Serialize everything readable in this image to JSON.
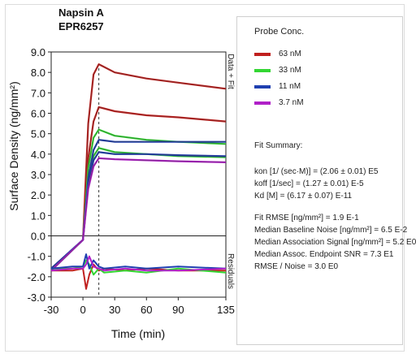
{
  "chart_data": {
    "type": "line",
    "title": "Napsin A",
    "subtitle": "EPR6257",
    "xlabel": "Time (min)",
    "ylabel": "Surface Density (ng/mm²)",
    "right_label_top": "Data + Fit",
    "right_label_bottom": "Residuals",
    "xlim": [
      -30,
      135
    ],
    "ylim": [
      -3.0,
      9.0
    ],
    "xticks": [
      -30,
      0,
      30,
      60,
      90,
      135
    ],
    "yticks": [
      9.0,
      8.0,
      7.0,
      6.0,
      5.0,
      4.0,
      3.0,
      2.0,
      1.0,
      0.0,
      -1.0,
      -2.0,
      -3.0
    ],
    "ytick_labels": [
      "9.0",
      "8.0",
      "7.0",
      "6.0",
      "5.0",
      "4.0",
      "3.0",
      "2.0",
      "1.0",
      "0.0",
      "-1.0",
      "-2.0",
      "-3.0"
    ],
    "xtick_labels": [
      "-30",
      "0",
      "30",
      "60",
      "90",
      "135"
    ],
    "dashed_marker_x": 15,
    "series": [
      {
        "name": "63 nM",
        "color": "#c0201e",
        "x": [
          -30,
          0,
          5,
          10,
          15,
          30,
          60,
          90,
          135
        ],
        "y": [
          -1.6,
          -0.2,
          5.5,
          7.9,
          8.4,
          8.0,
          7.7,
          7.5,
          7.2
        ]
      },
      {
        "name": "63 nM",
        "color": "#c0201e",
        "x": [
          -30,
          0,
          5,
          10,
          15,
          30,
          60,
          90,
          135
        ],
        "y": [
          -1.6,
          -0.2,
          3.8,
          5.6,
          6.3,
          6.1,
          5.9,
          5.8,
          5.6
        ]
      },
      {
        "name": "33 nM",
        "color": "#33d633",
        "x": [
          -30,
          0,
          5,
          10,
          15,
          30,
          60,
          90,
          135
        ],
        "y": [
          -1.7,
          -0.2,
          3.3,
          4.8,
          5.2,
          4.9,
          4.7,
          4.6,
          4.5
        ]
      },
      {
        "name": "33 nM",
        "color": "#33d633",
        "x": [
          -30,
          0,
          5,
          10,
          15,
          30,
          60,
          90,
          135
        ],
        "y": [
          -1.7,
          -0.2,
          2.6,
          3.9,
          4.3,
          4.1,
          4.0,
          3.9,
          3.85
        ]
      },
      {
        "name": "11 nM",
        "color": "#1f3fb0",
        "x": [
          -30,
          0,
          5,
          10,
          15,
          30,
          60,
          90,
          135
        ],
        "y": [
          -1.6,
          -0.2,
          2.8,
          4.2,
          4.7,
          4.6,
          4.6,
          4.6,
          4.6
        ]
      },
      {
        "name": "11 nM",
        "color": "#1f3fb0",
        "x": [
          -30,
          0,
          5,
          10,
          15,
          30,
          60,
          90,
          135
        ],
        "y": [
          -1.6,
          -0.2,
          2.5,
          3.7,
          4.1,
          4.0,
          4.0,
          3.95,
          3.9
        ]
      },
      {
        "name": "3.7 nM",
        "color": "#b020c8",
        "x": [
          -30,
          0,
          5,
          10,
          15,
          30,
          60,
          90,
          135
        ],
        "y": [
          -1.7,
          -0.2,
          2.3,
          3.4,
          3.8,
          3.75,
          3.7,
          3.65,
          3.6
        ]
      }
    ],
    "residuals": [
      {
        "color": "#c0201e",
        "x": [
          -30,
          -10,
          0,
          3,
          6,
          10,
          15,
          20,
          40,
          60,
          90,
          135
        ],
        "y": [
          -1.7,
          -1.7,
          -1.6,
          -2.6,
          -1.9,
          -1.4,
          -1.7,
          -1.6,
          -1.7,
          -1.6,
          -1.7,
          -1.7
        ]
      },
      {
        "color": "#33d633",
        "x": [
          -30,
          -10,
          0,
          3,
          6,
          10,
          15,
          20,
          40,
          60,
          90,
          135
        ],
        "y": [
          -1.6,
          -1.6,
          -1.5,
          -1.2,
          -1.4,
          -1.9,
          -1.6,
          -1.8,
          -1.7,
          -1.8,
          -1.6,
          -1.8
        ]
      },
      {
        "color": "#1f3fb0",
        "x": [
          -30,
          -10,
          0,
          3,
          6,
          10,
          15,
          20,
          40,
          60,
          90,
          135
        ],
        "y": [
          -1.6,
          -1.5,
          -1.5,
          -0.9,
          -1.6,
          -1.2,
          -1.5,
          -1.6,
          -1.5,
          -1.6,
          -1.5,
          -1.6
        ]
      },
      {
        "color": "#b020c8",
        "x": [
          -30,
          -10,
          0,
          3,
          6,
          10,
          15,
          20,
          40,
          60,
          90,
          135
        ],
        "y": [
          -1.7,
          -1.6,
          -1.6,
          -1.4,
          -1.0,
          -1.5,
          -1.6,
          -1.7,
          -1.6,
          -1.7,
          -1.7,
          -1.6
        ]
      }
    ],
    "legend": {
      "title": "Probe Conc.",
      "position": "right",
      "items": [
        {
          "label": "63 nM",
          "color": "#c0201e"
        },
        {
          "label": "33 nM",
          "color": "#33d633"
        },
        {
          "label": "11 nM",
          "color": "#1f3fb0"
        },
        {
          "label": "3.7 nM",
          "color": "#b020c8"
        }
      ]
    }
  },
  "fit_summary": {
    "title": "Fit Summary:",
    "params": [
      "kon  [1/ (sec·M)]  =   (2.06 ± 0.01) E5",
      "koff  [1/sec]  =   (1.27 ± 0.01) E-5",
      "Kd  [M]  =  (6.17 ± 0.07) E-11"
    ],
    "stats": [
      "Fit RMSE  [ng/mm²]  =   1.9 E-1",
      "Median Baseline Noise  [ng/mm²]  =  6.5 E-2",
      "Median Association Signal [ng/mm²]  =  5.2 E0",
      "Median Assoc. Endpoint SNR  =  7.3 E1",
      "RMSE / Noise  =   3.0 E0"
    ]
  }
}
